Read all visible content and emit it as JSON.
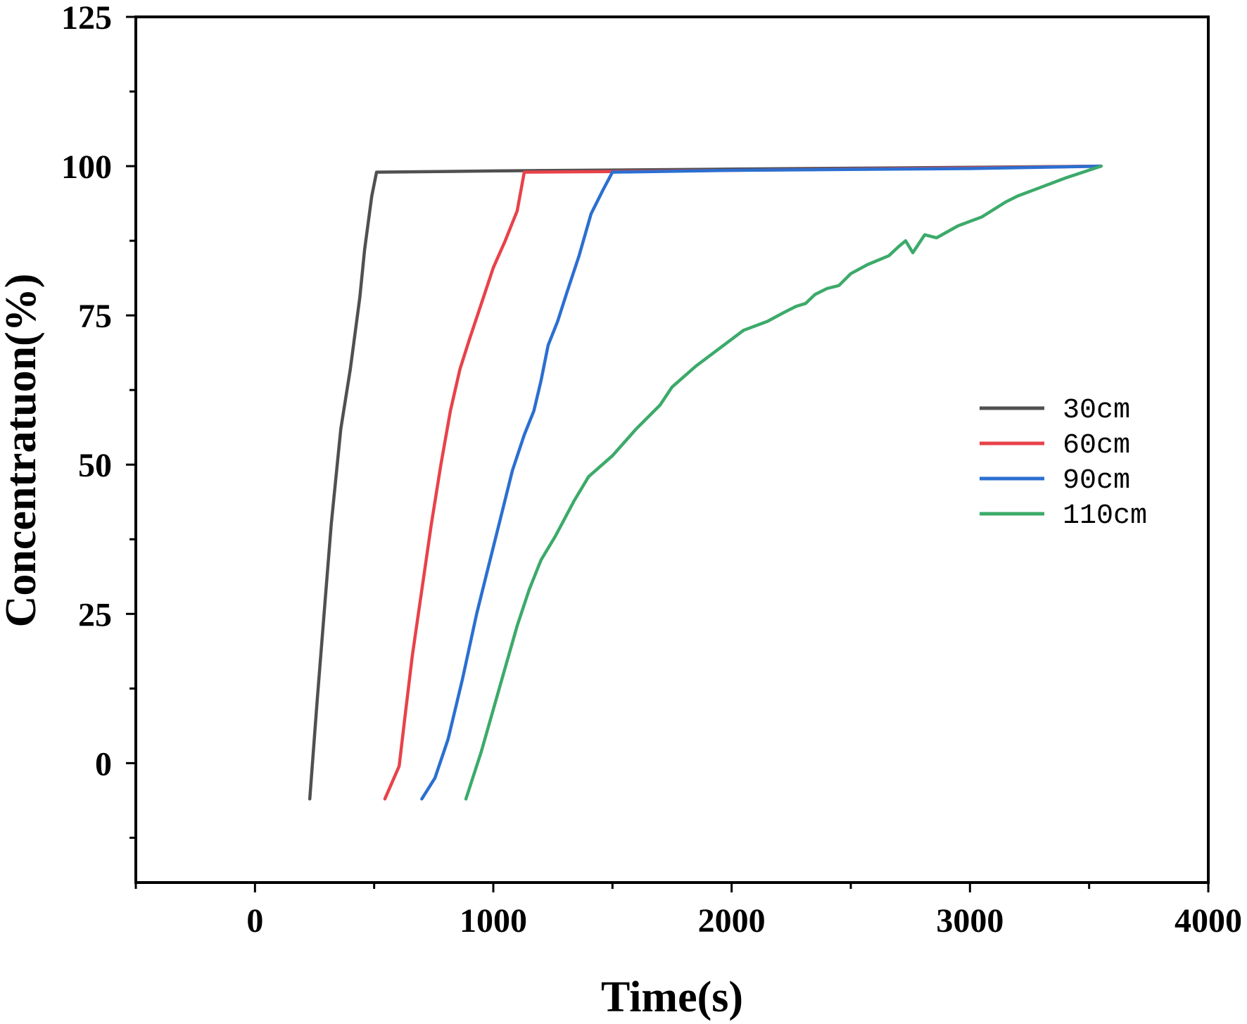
{
  "chart_data": {
    "type": "line",
    "title": "",
    "xlabel": "Time(s)",
    "ylabel": "Concentratuon(%)",
    "xlim": [
      -500,
      4000
    ],
    "ylim": [
      -20,
      125
    ],
    "xticks": [
      0,
      1000,
      2000,
      3000,
      4000
    ],
    "xtick_labels": [
      "0",
      "1000",
      "2000",
      "3000",
      "4000"
    ],
    "xminor": [
      -500,
      500,
      1500,
      2500,
      3500
    ],
    "yticks": [
      0,
      25,
      50,
      75,
      100,
      125
    ],
    "ytick_labels": [
      "0",
      "25",
      "50",
      "75",
      "100",
      "125"
    ],
    "yminor": [
      -12.5,
      12.5,
      37.5,
      62.5,
      87.5,
      112.5
    ],
    "grid": false,
    "legend_position": "right",
    "series": [
      {
        "name": "30cm",
        "color": "#505050",
        "points": [
          [
            230,
            -6
          ],
          [
            260,
            10
          ],
          [
            290,
            25
          ],
          [
            320,
            40
          ],
          [
            360,
            56
          ],
          [
            400,
            66
          ],
          [
            440,
            78
          ],
          [
            460,
            86
          ],
          [
            490,
            95
          ],
          [
            510,
            99
          ],
          [
            1000,
            99.2
          ],
          [
            2000,
            99.5
          ],
          [
            3000,
            99.8
          ],
          [
            3550,
            100
          ]
        ]
      },
      {
        "name": "60cm",
        "color": "#e8424a",
        "points": [
          [
            545,
            -6
          ],
          [
            605,
            -0.5
          ],
          [
            630,
            8
          ],
          [
            660,
            18
          ],
          [
            700,
            29
          ],
          [
            740,
            40
          ],
          [
            780,
            50
          ],
          [
            820,
            59
          ],
          [
            860,
            66
          ],
          [
            900,
            71
          ],
          [
            950,
            77
          ],
          [
            1000,
            83
          ],
          [
            1050,
            87.5
          ],
          [
            1100,
            92.5
          ],
          [
            1130,
            99
          ],
          [
            1500,
            99.1
          ],
          [
            2000,
            99.3
          ],
          [
            3000,
            99.7
          ],
          [
            3550,
            100
          ]
        ]
      },
      {
        "name": "90cm",
        "color": "#2b6fd1",
        "points": [
          [
            700,
            -6
          ],
          [
            755,
            -2.5
          ],
          [
            810,
            4
          ],
          [
            870,
            14
          ],
          [
            930,
            25
          ],
          [
            980,
            33
          ],
          [
            1030,
            41
          ],
          [
            1080,
            49
          ],
          [
            1130,
            55
          ],
          [
            1170,
            59
          ],
          [
            1200,
            64
          ],
          [
            1230,
            70
          ],
          [
            1270,
            74
          ],
          [
            1310,
            79
          ],
          [
            1360,
            85
          ],
          [
            1410,
            92
          ],
          [
            1460,
            96
          ],
          [
            1500,
            99
          ],
          [
            2000,
            99.3
          ],
          [
            3000,
            99.6
          ],
          [
            3550,
            100
          ]
        ]
      },
      {
        "name": "110cm",
        "color": "#3caa6a",
        "points": [
          [
            885,
            -6
          ],
          [
            950,
            2
          ],
          [
            1000,
            9
          ],
          [
            1050,
            16
          ],
          [
            1100,
            23
          ],
          [
            1150,
            29
          ],
          [
            1200,
            34
          ],
          [
            1260,
            38
          ],
          [
            1340,
            44
          ],
          [
            1400,
            48
          ],
          [
            1500,
            51.5
          ],
          [
            1600,
            56
          ],
          [
            1700,
            60
          ],
          [
            1750,
            63
          ],
          [
            1850,
            66.5
          ],
          [
            1950,
            69.5
          ],
          [
            2050,
            72.5
          ],
          [
            2150,
            74
          ],
          [
            2220,
            75.5
          ],
          [
            2270,
            76.5
          ],
          [
            2310,
            77
          ],
          [
            2350,
            78.5
          ],
          [
            2400,
            79.5
          ],
          [
            2450,
            80
          ],
          [
            2500,
            82
          ],
          [
            2570,
            83.5
          ],
          [
            2660,
            85
          ],
          [
            2700,
            86.5
          ],
          [
            2730,
            87.5
          ],
          [
            2760,
            85.5
          ],
          [
            2810,
            88.5
          ],
          [
            2860,
            88
          ],
          [
            2950,
            90
          ],
          [
            3050,
            91.5
          ],
          [
            3150,
            94
          ],
          [
            3200,
            95
          ],
          [
            3300,
            96.5
          ],
          [
            3400,
            98
          ],
          [
            3550,
            100
          ]
        ]
      }
    ]
  }
}
